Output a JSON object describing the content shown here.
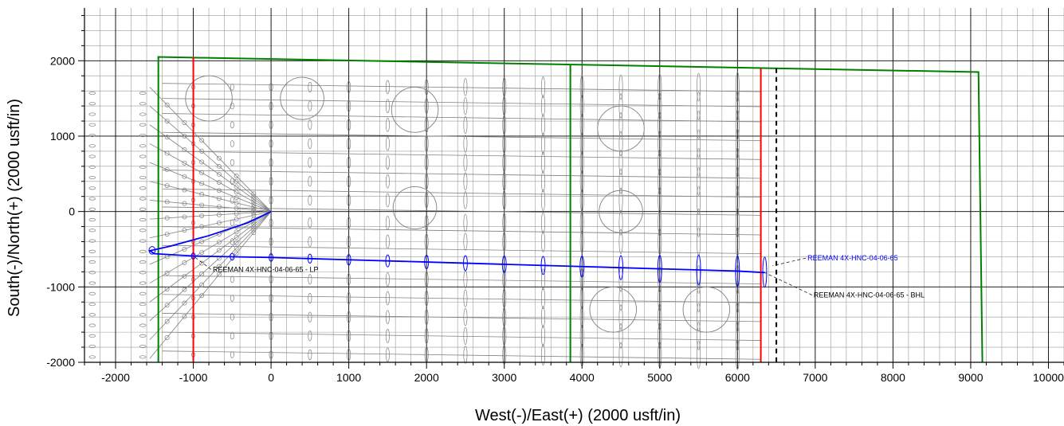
{
  "chart_data": {
    "type": "scatter",
    "xlabel": "West(-)/East(+)  (2000  usft/in)",
    "ylabel": "South(-)/North(+)  (2000  usft/in)",
    "xlim": [
      -2400,
      10200
    ],
    "ylim": [
      -2000,
      2700
    ],
    "x_ticks": [
      -2000,
      -1000,
      0,
      1000,
      2000,
      3000,
      4000,
      5000,
      6000,
      7000,
      8000,
      9000,
      10000
    ],
    "y_ticks": [
      -2000,
      -1000,
      0,
      1000,
      2000
    ],
    "x_major_step": 1000,
    "y_major_step": 1000,
    "x_minor_step": 200,
    "y_minor_step": 200,
    "grid": true,
    "colors": {
      "grid_major": "#000000",
      "grid_minor": "#9a9a9a",
      "offset_wells": "#808080",
      "subject_well": "#0000ff",
      "lease_line": "#008000",
      "hardline": "#ff0000",
      "section_line": "#000000",
      "annotation_text": "#000000"
    },
    "subject_well": {
      "name": "REEMAN  4X-HNC-04-06-65",
      "path": [
        [
          0,
          0
        ],
        [
          -300,
          -150
        ],
        [
          -800,
          -320
        ],
        [
          -1300,
          -460
        ],
        [
          -1560,
          -520
        ],
        [
          -1500,
          -560
        ],
        [
          -1000,
          -590
        ],
        [
          0,
          -610
        ],
        [
          1000,
          -640
        ],
        [
          2000,
          -670
        ],
        [
          3000,
          -700
        ],
        [
          4000,
          -730
        ],
        [
          5000,
          -760
        ],
        [
          6000,
          -790
        ],
        [
          6350,
          -810
        ]
      ],
      "uncertainty_ellipses": [
        {
          "x": -1530,
          "y": -515,
          "rx": 40,
          "ry": 50
        },
        {
          "x": -1000,
          "y": -590,
          "rx": 25,
          "ry": 40
        },
        {
          "x": -500,
          "y": -600,
          "rx": 25,
          "ry": 45
        },
        {
          "x": 0,
          "y": -610,
          "rx": 25,
          "ry": 50
        },
        {
          "x": 500,
          "y": -625,
          "rx": 25,
          "ry": 60
        },
        {
          "x": 1000,
          "y": -640,
          "rx": 25,
          "ry": 70
        },
        {
          "x": 1500,
          "y": -655,
          "rx": 25,
          "ry": 80
        },
        {
          "x": 2000,
          "y": -670,
          "rx": 25,
          "ry": 90
        },
        {
          "x": 2500,
          "y": -685,
          "rx": 25,
          "ry": 100
        },
        {
          "x": 3000,
          "y": -700,
          "rx": 25,
          "ry": 110
        },
        {
          "x": 3500,
          "y": -715,
          "rx": 25,
          "ry": 120
        },
        {
          "x": 4000,
          "y": -730,
          "rx": 25,
          "ry": 140
        },
        {
          "x": 4500,
          "y": -745,
          "rx": 25,
          "ry": 160
        },
        {
          "x": 5000,
          "y": -760,
          "rx": 25,
          "ry": 180
        },
        {
          "x": 5500,
          "y": -775,
          "rx": 25,
          "ry": 200
        },
        {
          "x": 6000,
          "y": -790,
          "rx": 25,
          "ry": 200
        },
        {
          "x": 6350,
          "y": -805,
          "rx": 25,
          "ry": 200
        }
      ]
    },
    "offset_wells": {
      "fan_end_x": -1560,
      "fan_end_y": [
        1650,
        1400,
        1150,
        900,
        650,
        400,
        150,
        -100,
        -350,
        -700,
        -950,
        -1200,
        -1450,
        -1700,
        -1950
      ],
      "lateral_start_x": -1400,
      "lateral_end_x": 6300,
      "lateral_start_y": [
        1700,
        1500,
        1300,
        1050,
        800,
        550,
        300,
        60,
        -200,
        -450,
        -850,
        -1100,
        -1350,
        -1600,
        -1850
      ],
      "lateral_drift": -110,
      "ellipse_columns_x": [
        -1000,
        -500,
        0,
        500,
        1000,
        1500,
        2000,
        2500,
        3000,
        3500,
        4000,
        4500,
        5000,
        5500,
        6000
      ],
      "ellipse_rows_y": [
        1650,
        1400,
        1150,
        900,
        650,
        400,
        150,
        -150,
        -400,
        -900,
        -1150,
        -1400,
        -1650,
        -1900
      ],
      "far_west_column_x": [
        -2300,
        -1650
      ],
      "far_west_rows_y": [
        1570,
        1430,
        1290,
        1150,
        1010,
        870,
        730,
        590,
        450,
        310,
        170,
        30,
        -110,
        -250,
        -390,
        -530,
        -670,
        -810,
        -950,
        -1090,
        -1230,
        -1370,
        -1510,
        -1650,
        -1790,
        -1930
      ]
    },
    "large_circles": [
      {
        "x": -800,
        "y": 1500,
        "r": 300
      },
      {
        "x": 400,
        "y": 1500,
        "r": 280
      },
      {
        "x": 1850,
        "y": 1350,
        "r": 300
      },
      {
        "x": 4500,
        "y": 1100,
        "r": 300
      },
      {
        "x": 1850,
        "y": 50,
        "r": 280
      },
      {
        "x": 4500,
        "y": 0,
        "r": 280
      },
      {
        "x": 4400,
        "y": -1300,
        "r": 300
      },
      {
        "x": 5600,
        "y": -1300,
        "r": 300
      }
    ],
    "lease_boundary": [
      [
        -1450,
        -2000
      ],
      [
        -1450,
        2050
      ],
      [
        9100,
        1850
      ],
      [
        9150,
        -2000
      ]
    ],
    "lease_divider": [
      [
        3850,
        -2000
      ],
      [
        3850,
        1950
      ]
    ],
    "hardlines": [
      [
        [
          -1000,
          -2000
        ],
        [
          -1000,
          2050
        ]
      ],
      [
        [
          6300,
          -2000
        ],
        [
          6300,
          1900
        ]
      ]
    ],
    "section_line_x": 6500,
    "section_line_y_top": 1900,
    "annotations": [
      {
        "text": "REEMAN  4X-HNC-04-06-65",
        "x": 6900,
        "y": -650,
        "color": "#0000ff",
        "leader_to": [
          6450,
          -720
        ]
      },
      {
        "text": "REEMAN  4X-HNC-04-06-65 - LP",
        "x": -750,
        "y": -800,
        "color": "#000000",
        "leader_to": [
          -1000,
          -590
        ]
      },
      {
        "text": "REEMAN  4X-HNC-04-06-65 - BHL",
        "x": 6980,
        "y": -1140,
        "color": "#000000",
        "leader_to": [
          6350,
          -810
        ]
      }
    ]
  }
}
